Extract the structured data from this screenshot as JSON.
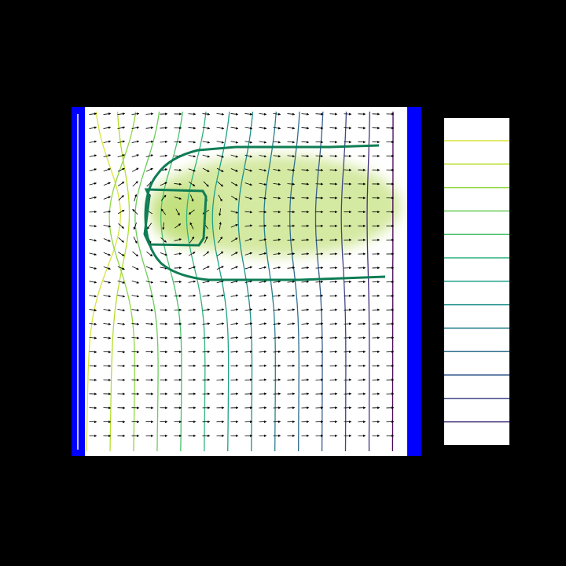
{
  "chart_data": {
    "type": "contour",
    "colors": [
      "#d8e33e",
      "#b5de2b",
      "#90d743",
      "#6ccd5a",
      "#4ac16d",
      "#2fb47c",
      "#1fa188",
      "#21918c",
      "#277f8e",
      "#2e6e8e",
      "#365c8d",
      "#3f4788",
      "#46327e",
      "#440154"
    ]
  }
}
